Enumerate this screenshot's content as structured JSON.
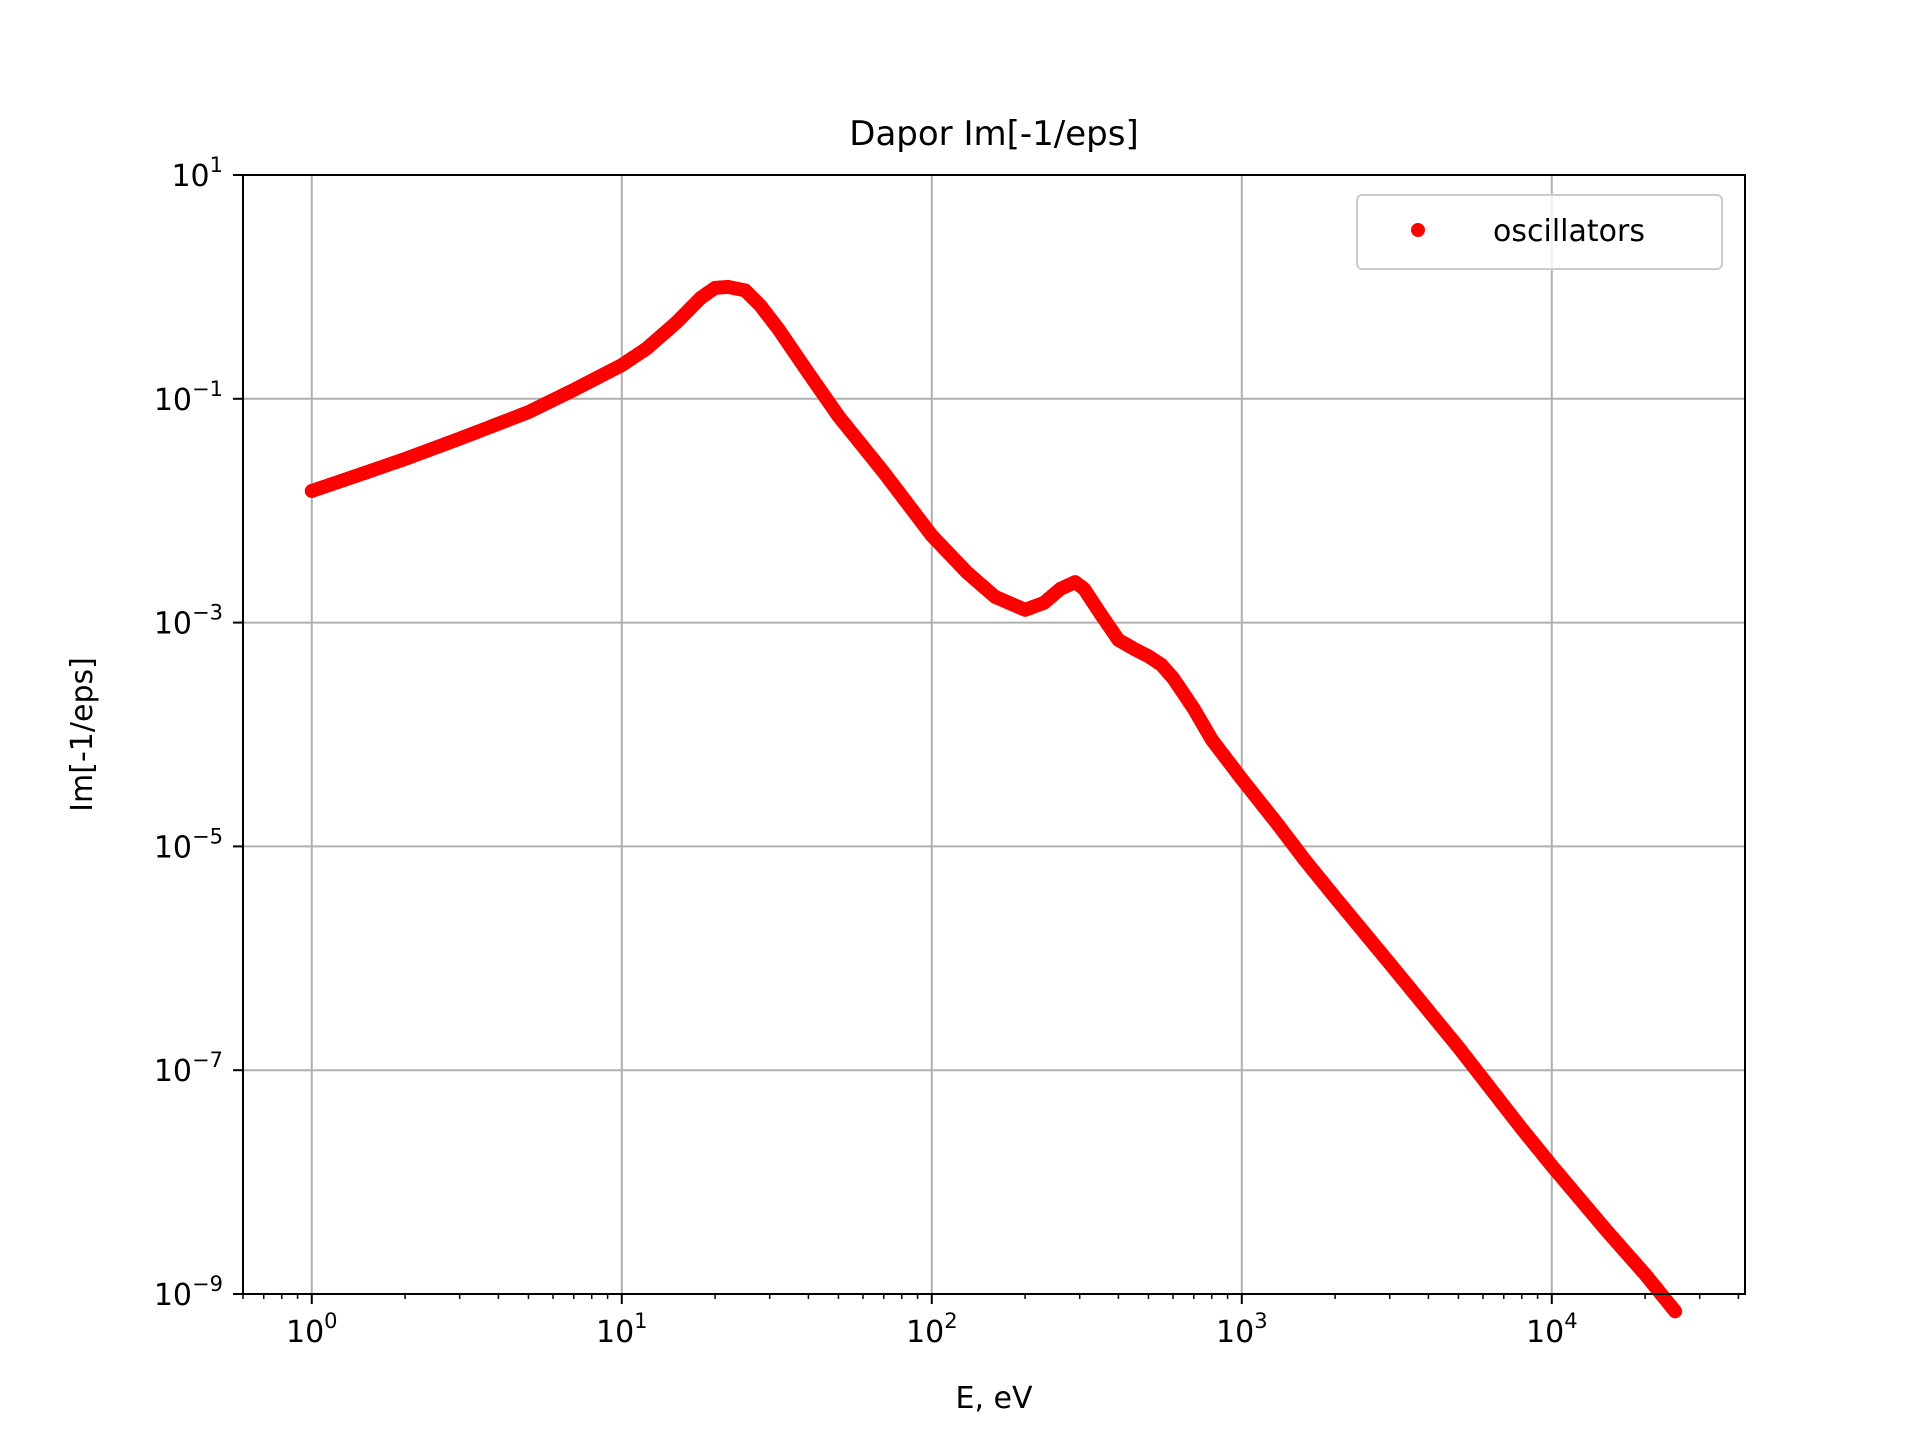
{
  "chart_data": {
    "type": "scatter",
    "title": "Dapor Im[-1/eps]",
    "xlabel": "E, eV",
    "ylabel": "Im[-1/eps]",
    "xscale": "log",
    "yscale": "log",
    "xlim": [
      0.6,
      42000
    ],
    "ylim": [
      1e-09,
      10
    ],
    "x_tick_labels": [
      {
        "value": 1,
        "base": "10",
        "exp": "0"
      },
      {
        "value": 10,
        "base": "10",
        "exp": "1"
      },
      {
        "value": 100,
        "base": "10",
        "exp": "2"
      },
      {
        "value": 1000,
        "base": "10",
        "exp": "3"
      },
      {
        "value": 10000,
        "base": "10",
        "exp": "4"
      }
    ],
    "y_tick_labels": [
      {
        "value": 10,
        "base": "10",
        "exp": "1"
      },
      {
        "value": 0.1,
        "base": "10",
        "exp": "−1"
      },
      {
        "value": 0.001,
        "base": "10",
        "exp": "−3"
      },
      {
        "value": 1e-05,
        "base": "10",
        "exp": "−5"
      },
      {
        "value": 1e-07,
        "base": "10",
        "exp": "−7"
      },
      {
        "value": 1e-09,
        "base": "10",
        "exp": "−9"
      }
    ],
    "grid": true,
    "legend_position": "top-right",
    "series": [
      {
        "name": "oscillators",
        "color": "#ff0000",
        "marker": "circle",
        "x": [
          1,
          1.5,
          2,
          3,
          5,
          7,
          10,
          12,
          15,
          18,
          20,
          22,
          25,
          28,
          32,
          40,
          50,
          70,
          100,
          130,
          160,
          200,
          230,
          260,
          290,
          310,
          350,
          400,
          450,
          500,
          550,
          600,
          700,
          800,
          1000,
          1300,
          1600,
          2000,
          3000,
          5000,
          8000,
          10000,
          15000,
          20000,
          25000
        ],
        "y": [
          0.015,
          0.022,
          0.029,
          0.044,
          0.076,
          0.12,
          0.2,
          0.28,
          0.48,
          0.8,
          0.98,
          1.0,
          0.93,
          0.68,
          0.42,
          0.17,
          0.07,
          0.022,
          0.006,
          0.0028,
          0.0017,
          0.0013,
          0.0015,
          0.002,
          0.0023,
          0.002,
          0.0012,
          0.0007,
          0.00058,
          0.0005,
          0.00042,
          0.00032,
          0.00017,
          9e-05,
          4e-05,
          1.6e-05,
          7.5e-06,
          3.5e-06,
          9e-07,
          1.6e-07,
          3e-08,
          1.4e-08,
          3.7e-09,
          1.5e-09,
          7e-10
        ]
      }
    ]
  }
}
